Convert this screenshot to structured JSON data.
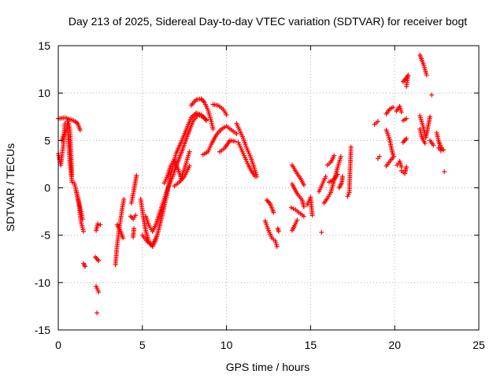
{
  "chart_data": {
    "type": "scatter",
    "title": "Day 213 of 2025, Sidereal Day-to-day VTEC variation (SDTVAR) for receiver bogt",
    "xlabel": "GPS time / hours",
    "ylabel": "SDTVAR / TECUs",
    "xlim": [
      0,
      25
    ],
    "ylim": [
      -15,
      15
    ],
    "xticks": [
      "0",
      "5",
      "10",
      "15",
      "20",
      "25"
    ],
    "yticks": [
      "-15",
      "-10",
      "-5",
      "0",
      "5",
      "10",
      "15"
    ],
    "grid": true,
    "marker": "+",
    "color": "#ff0000",
    "segments": [
      [
        [
          0.0,
          7.3
        ],
        [
          0.4,
          7.4
        ],
        [
          0.9,
          7.1
        ]
      ],
      [
        [
          0.0,
          3.6
        ],
        [
          0.15,
          2.4
        ],
        [
          0.3,
          4.5
        ],
        [
          0.4,
          6.8
        ]
      ],
      [
        [
          0.2,
          5.0
        ],
        [
          0.45,
          6.0
        ],
        [
          0.6,
          7.0
        ],
        [
          0.7,
          6.0
        ],
        [
          0.75,
          4.0
        ],
        [
          0.8,
          2.0
        ],
        [
          0.8,
          1.2
        ]
      ],
      [
        [
          0.55,
          7.0
        ],
        [
          0.62,
          4.5
        ],
        [
          0.7,
          2.5
        ],
        [
          0.82,
          0.6
        ]
      ],
      [
        [
          1.0,
          7.0
        ],
        [
          1.15,
          6.8
        ],
        [
          1.3,
          6.1
        ]
      ],
      [
        [
          0.95,
          0.5
        ],
        [
          1.1,
          -0.5
        ],
        [
          1.25,
          -2.0
        ],
        [
          1.35,
          -3.6
        ],
        [
          1.5,
          -4.6
        ]
      ],
      [
        [
          1.05,
          -0.3
        ],
        [
          1.2,
          -1.3
        ],
        [
          1.35,
          -2.5
        ],
        [
          1.45,
          -3.3
        ]
      ],
      [
        [
          1.5,
          -8.0
        ],
        [
          1.6,
          -8.3
        ]
      ],
      [
        [
          2.25,
          -4.5
        ],
        [
          2.35,
          -3.8
        ],
        [
          2.5,
          -3.9
        ]
      ],
      [
        [
          2.2,
          -7.3
        ],
        [
          2.4,
          -7.7
        ]
      ],
      [
        [
          2.25,
          -10.4
        ],
        [
          2.4,
          -11.0
        ]
      ],
      [
        [
          2.3,
          -13.2
        ]
      ],
      [
        [
          3.4,
          -8.1
        ],
        [
          3.5,
          -6.0
        ],
        [
          3.65,
          -4.0
        ],
        [
          3.8,
          -2.2
        ],
        [
          3.9,
          -1.2
        ]
      ],
      [
        [
          3.5,
          -3.9
        ],
        [
          3.7,
          -4.6
        ],
        [
          3.85,
          -5.3
        ]
      ],
      [
        [
          4.35,
          -1.6
        ],
        [
          4.5,
          -0.2
        ],
        [
          4.65,
          1.3
        ]
      ],
      [
        [
          4.3,
          -3.0
        ],
        [
          4.45,
          -3.3
        ],
        [
          4.6,
          -2.9
        ]
      ],
      [
        [
          4.45,
          -5.2
        ],
        [
          4.5,
          -4.3
        ]
      ],
      [
        [
          4.9,
          -1.2
        ],
        [
          5.05,
          -3.0
        ],
        [
          5.2,
          -4.5
        ],
        [
          5.4,
          -5.8
        ],
        [
          5.6,
          -6.2
        ],
        [
          5.8,
          -5.5
        ],
        [
          6.0,
          -4.2
        ],
        [
          6.2,
          -2.7
        ],
        [
          6.4,
          -1.2
        ],
        [
          6.6,
          0.6
        ],
        [
          6.8,
          2.2
        ],
        [
          7.0,
          3.6
        ],
        [
          7.3,
          4.8
        ],
        [
          7.6,
          6.1
        ],
        [
          7.9,
          7.4
        ],
        [
          8.2,
          7.9
        ],
        [
          8.5,
          7.7
        ],
        [
          8.8,
          7.2
        ]
      ],
      [
        [
          5.2,
          -3.0
        ],
        [
          5.4,
          -4.0
        ],
        [
          5.6,
          -4.6
        ],
        [
          5.8,
          -3.9
        ],
        [
          6.0,
          -2.8
        ],
        [
          6.2,
          -1.7
        ],
        [
          6.5,
          -0.1
        ],
        [
          6.8,
          1.2
        ],
        [
          7.1,
          2.7
        ],
        [
          7.4,
          4.1
        ],
        [
          7.7,
          5.6
        ],
        [
          8.0,
          7.0
        ],
        [
          8.3,
          7.7
        ],
        [
          8.6,
          7.5
        ],
        [
          8.8,
          7.1
        ]
      ],
      [
        [
          5.0,
          -5.0
        ],
        [
          5.3,
          -5.7
        ],
        [
          5.6,
          -6.0
        ],
        [
          5.8,
          -5.3
        ]
      ],
      [
        [
          6.3,
          0.5
        ],
        [
          6.5,
          1.3
        ],
        [
          6.7,
          2.4
        ],
        [
          6.9,
          3.0
        ],
        [
          7.1,
          2.1
        ],
        [
          7.3,
          1.0
        ],
        [
          7.5,
          2.0
        ],
        [
          7.7,
          3.2
        ],
        [
          7.8,
          3.8
        ]
      ],
      [
        [
          6.9,
          0.2
        ],
        [
          7.2,
          0.6
        ],
        [
          7.5,
          1.2
        ],
        [
          7.8,
          2.3
        ]
      ],
      [
        [
          7.9,
          8.7
        ],
        [
          8.2,
          9.3
        ],
        [
          8.5,
          9.4
        ],
        [
          8.7,
          9.0
        ],
        [
          8.9,
          8.2
        ],
        [
          9.1,
          7.0
        ],
        [
          9.2,
          6.2
        ]
      ],
      [
        [
          8.6,
          3.5
        ],
        [
          8.9,
          3.8
        ],
        [
          9.1,
          4.6
        ],
        [
          9.4,
          5.6
        ],
        [
          9.7,
          6.2
        ],
        [
          10.0,
          6.5
        ],
        [
          10.3,
          6.1
        ],
        [
          10.6,
          5.7
        ]
      ],
      [
        [
          9.2,
          8.8
        ],
        [
          9.5,
          8.7
        ],
        [
          9.8,
          8.3
        ],
        [
          10.0,
          7.7
        ]
      ],
      [
        [
          9.6,
          3.8
        ],
        [
          9.9,
          4.2
        ],
        [
          10.2,
          5.0
        ],
        [
          10.5,
          4.9
        ]
      ],
      [
        [
          10.6,
          6.8
        ],
        [
          10.8,
          6.0
        ],
        [
          11.0,
          5.2
        ],
        [
          11.2,
          4.2
        ],
        [
          11.4,
          3.4
        ],
        [
          11.6,
          2.4
        ],
        [
          11.8,
          1.2
        ]
      ],
      [
        [
          10.7,
          4.8
        ],
        [
          10.9,
          4.0
        ],
        [
          11.1,
          3.2
        ],
        [
          11.3,
          2.4
        ],
        [
          11.5,
          1.7
        ],
        [
          11.7,
          1.2
        ]
      ],
      [
        [
          12.4,
          -1.3
        ],
        [
          12.6,
          -1.7
        ],
        [
          12.8,
          -2.6
        ]
      ],
      [
        [
          12.3,
          -3.5
        ],
        [
          12.5,
          -4.5
        ],
        [
          12.7,
          -5.3
        ],
        [
          12.9,
          -5.6
        ],
        [
          13.0,
          -6.2
        ]
      ],
      [
        [
          13.05,
          -4.3
        ],
        [
          13.1,
          -4.6
        ]
      ],
      [
        [
          13.9,
          2.4
        ],
        [
          14.2,
          1.5
        ],
        [
          14.4,
          1.0
        ],
        [
          14.6,
          0.3
        ]
      ],
      [
        [
          13.9,
          0.4
        ],
        [
          14.2,
          -0.6
        ],
        [
          14.5,
          -1.3
        ],
        [
          14.6,
          -2.0
        ]
      ],
      [
        [
          13.85,
          -2.1
        ],
        [
          14.1,
          -2.3
        ],
        [
          14.3,
          -2.6
        ],
        [
          14.6,
          -3.0
        ]
      ],
      [
        [
          13.9,
          -4.5
        ],
        [
          14.05,
          -4.0
        ],
        [
          14.2,
          -3.4
        ]
      ],
      [
        [
          14.8,
          -1.8
        ],
        [
          15.0,
          -1.0
        ],
        [
          15.1,
          -2.9
        ]
      ],
      [
        [
          15.5,
          -0.4
        ],
        [
          15.7,
          0.4
        ],
        [
          15.9,
          1.2
        ]
      ],
      [
        [
          15.65,
          -4.7
        ]
      ],
      [
        [
          15.8,
          -1.6
        ],
        [
          16.0,
          -1.1
        ],
        [
          16.2,
          -0.5
        ],
        [
          16.4,
          0.8
        ],
        [
          16.6,
          2.1
        ],
        [
          16.8,
          3.3
        ]
      ],
      [
        [
          16.0,
          2.4
        ],
        [
          16.2,
          2.7
        ],
        [
          16.4,
          3.4
        ]
      ],
      [
        [
          16.1,
          0.6
        ],
        [
          16.4,
          0.9
        ],
        [
          16.6,
          1.4
        ]
      ],
      [
        [
          16.7,
          0.0
        ],
        [
          16.85,
          0.5
        ],
        [
          16.9,
          1.2
        ]
      ],
      [
        [
          17.2,
          -0.9
        ],
        [
          17.3,
          -0.5
        ],
        [
          17.4,
          4.3
        ]
      ],
      [
        [
          18.8,
          6.7
        ],
        [
          19.0,
          7.0
        ]
      ],
      [
        [
          19.0,
          3.1
        ],
        [
          19.1,
          3.3
        ]
      ],
      [
        [
          19.5,
          6.1
        ],
        [
          19.7,
          5.1
        ],
        [
          19.8,
          4.2
        ],
        [
          19.9,
          3.5
        ]
      ],
      [
        [
          19.5,
          7.8
        ],
        [
          19.7,
          8.3
        ],
        [
          19.9,
          8.5
        ]
      ],
      [
        [
          19.5,
          2.3
        ],
        [
          19.8,
          3.0
        ],
        [
          19.95,
          3.3
        ]
      ],
      [
        [
          20.1,
          8.1
        ],
        [
          20.3,
          8.6
        ],
        [
          20.4,
          8.0
        ]
      ],
      [
        [
          20.15,
          2.4
        ],
        [
          20.3,
          2.8
        ],
        [
          20.4,
          2.2
        ]
      ],
      [
        [
          20.5,
          11.2
        ],
        [
          20.7,
          11.6
        ],
        [
          20.8,
          11.9
        ],
        [
          20.7,
          10.7
        ]
      ],
      [
        [
          20.5,
          7.1
        ],
        [
          20.7,
          7.3
        ]
      ],
      [
        [
          20.5,
          4.8
        ],
        [
          20.7,
          5.2
        ]
      ],
      [
        [
          20.4,
          1.8
        ],
        [
          20.6,
          1.5
        ],
        [
          20.7,
          2.2
        ]
      ],
      [
        [
          21.5,
          14.0
        ],
        [
          21.7,
          13.1
        ],
        [
          21.9,
          11.9
        ]
      ],
      [
        [
          21.5,
          7.6
        ],
        [
          21.7,
          6.4
        ],
        [
          21.85,
          5.3
        ],
        [
          22.0,
          6.6
        ],
        [
          22.1,
          7.5
        ]
      ],
      [
        [
          21.5,
          6.2
        ],
        [
          21.6,
          5.4
        ],
        [
          21.8,
          4.7
        ]
      ],
      [
        [
          22.2,
          9.8
        ]
      ],
      [
        [
          22.1,
          5.0
        ],
        [
          22.3,
          4.5
        ]
      ],
      [
        [
          22.5,
          5.8
        ],
        [
          22.6,
          5.0
        ],
        [
          22.7,
          4.5
        ],
        [
          22.75,
          3.9
        ]
      ],
      [
        [
          22.6,
          4.2
        ],
        [
          22.8,
          4.2
        ],
        [
          22.9,
          4.0
        ]
      ],
      [
        [
          22.95,
          1.7
        ]
      ]
    ]
  }
}
